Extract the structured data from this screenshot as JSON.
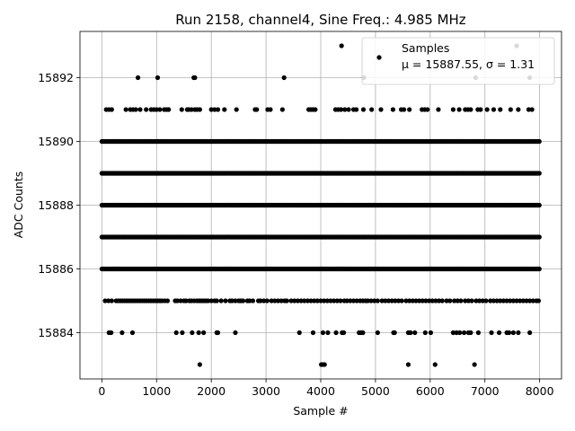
{
  "chart_data": {
    "type": "scatter",
    "title": "Run 2158, channel4, Sine Freq.: 4.985 MHz",
    "xlabel": "Sample #",
    "ylabel": "ADC Counts",
    "xlim": [
      -400,
      8400
    ],
    "ylim": [
      15882.55,
      15893.45
    ],
    "xticks": [
      0,
      1000,
      2000,
      3000,
      4000,
      5000,
      6000,
      7000,
      8000
    ],
    "yticks": [
      15884,
      15886,
      15888,
      15890,
      15892
    ],
    "grid": true,
    "legend_position": "top-right",
    "marker_color": "#000000",
    "series": [
      {
        "name": "Samples",
        "legend_line2": "μ = 15887.55, σ = 1.31",
        "n_samples": 8000,
        "dense_levels": [
          15886,
          15887,
          15888,
          15889,
          15890
        ],
        "sparse_points": [
          {
            "y": 15893,
            "x": [
              4380,
              7580
            ]
          },
          {
            "y": 15892,
            "x": [
              660,
              1020,
              1680,
              1700,
              3330,
              4790,
              6830,
              7820
            ]
          },
          {
            "y": 15891,
            "x": [
              80,
              130,
              180,
              440,
              520,
              570,
              620,
              700,
              810,
              900,
              950,
              1000,
              1060,
              1140,
              1180,
              1220,
              1460,
              1560,
              1590,
              1640,
              1700,
              1740,
              1790,
              2000,
              2060,
              2120,
              2240,
              2460,
              2800,
              2830,
              3030,
              3080,
              3300,
              3780,
              3820,
              3860,
              3900,
              4270,
              4320,
              4370,
              4440,
              4510,
              4600,
              4650,
              4780,
              4930,
              5100,
              5320,
              5470,
              5520,
              5620,
              5850,
              5900,
              5950,
              6150,
              6420,
              6530,
              6640,
              6690,
              6740,
              6870,
              6920,
              7040,
              7160,
              7280,
              7470,
              7610,
              7800,
              7860
            ]
          },
          {
            "y": 15885,
            "x": [
              60,
              120,
              180,
              260,
              300,
              340,
              380,
              420,
              460,
              500,
              540,
              580,
              620,
              660,
              700,
              740,
              780,
              820,
              860,
              900,
              940,
              980,
              1020,
              1060,
              1100,
              1150,
              1200,
              1340,
              1380,
              1440,
              1500,
              1540,
              1600,
              1640,
              1690,
              1740,
              1780,
              1820,
              1860,
              1900,
              1940,
              2000,
              2060,
              2100,
              2180,
              2260,
              2340,
              2380,
              2440,
              2500,
              2540,
              2580,
              2660,
              2700,
              2760,
              2860,
              2900,
              2960,
              3020,
              3100,
              3160,
              3220,
              3280,
              3340,
              3380,
              3460,
              3520,
              3580,
              3640,
              3700,
              3760,
              3820,
              3880,
              3940,
              4000,
              4060,
              4120,
              4180,
              4240,
              4300,
              4360,
              4430,
              4480,
              4540,
              4600,
              4660,
              4720,
              4770,
              4820,
              4860,
              4920,
              4980,
              5040,
              5120,
              5180,
              5240,
              5300,
              5360,
              5420,
              5480,
              5560,
              5620,
              5680,
              5740,
              5800,
              5860,
              5920,
              5980,
              6040,
              6100,
              6160,
              6220,
              6300,
              6360,
              6440,
              6500,
              6560,
              6640,
              6700,
              6760,
              6840,
              6900,
              6960,
              7020,
              7100,
              7160,
              7220,
              7280,
              7340,
              7400,
              7460,
              7520,
              7580,
              7640,
              7700,
              7760,
              7820,
              7880,
              7940,
              7980
            ]
          },
          {
            "y": 15884,
            "x": [
              130,
              170,
              370,
              560,
              1360,
              1470,
              1650,
              1770,
              1860,
              2100,
              2120,
              2440,
              3610,
              3860,
              4040,
              4130,
              4280,
              4390,
              4420,
              4700,
              4740,
              4770,
              5040,
              5330,
              5350,
              5600,
              5640,
              5720,
              5910,
              6010,
              6420,
              6480,
              6540,
              6620,
              6700,
              6740,
              6880,
              7120,
              7260,
              7400,
              7440,
              7520,
              7610,
              7820
            ]
          },
          {
            "y": 15883,
            "x": [
              1790,
              4010,
              4040,
              4070,
              5600,
              6090,
              6810
            ]
          }
        ]
      }
    ]
  }
}
